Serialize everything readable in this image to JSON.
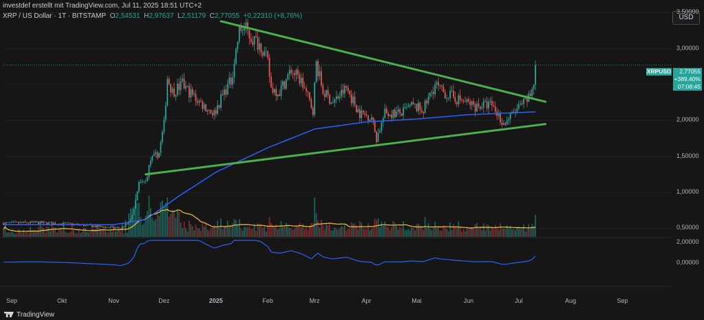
{
  "header": {
    "attribution": "investdef erstellt mit TradingView.com, Jul 11, 2025 18:51 UTC+2",
    "symbol": "XRP / US Dollar · 1T · BITSTAMP",
    "open_label": "O",
    "open": "2,54531",
    "high_label": "H",
    "high": "2,97637",
    "low_label": "L",
    "low": "2,51179",
    "close_label": "C",
    "close": "2,77055",
    "change": "+0,22310 (+8,76%)"
  },
  "currency": "USD",
  "price_tag": {
    "symbol": "XRPUSD",
    "price": "2,77055",
    "change_pct": "+389,40%",
    "countdown": "07:08:45"
  },
  "footer": {
    "brand": "TradingView"
  },
  "colors": {
    "background": "#161616",
    "up": "#26a69a",
    "down": "#ef5350",
    "trendline": "#4caf50",
    "ma": "#2962ff",
    "volume_ma": "#f9c23c",
    "oscillator": "#2962ff"
  },
  "chart_data": {
    "type": "candlestick",
    "title": "",
    "price_axis": {
      "ticks": [
        "3,50000",
        "3,00000",
        "2,50000",
        "2,00000",
        "1,50000",
        "1,00000",
        "0,50000"
      ],
      "tick_values": [
        3.5,
        3.0,
        2.5,
        2.0,
        1.5,
        1.0,
        0.5
      ],
      "range": [
        0.38,
        3.58
      ]
    },
    "oscillator_axis": {
      "ticks": [
        "2,00000",
        "0,00000"
      ],
      "tick_values": [
        2.0,
        0.0
      ]
    },
    "x_axis": {
      "ticks": [
        "Sep",
        "Okt",
        "Nov",
        "Dez",
        "2025",
        "Feb",
        "Mrz",
        "Apr",
        "Mai",
        "Jun",
        "Jul",
        "Aug",
        "Sep"
      ],
      "range": [
        "2024-08-27",
        "2025-09-30"
      ]
    },
    "price_keypoints": [
      [
        "2024-08-27",
        0.57
      ],
      [
        "2024-09-15",
        0.58
      ],
      [
        "2024-10-05",
        0.56
      ],
      [
        "2024-10-25",
        0.52
      ],
      [
        "2024-11-05",
        0.5
      ],
      [
        "2024-11-10",
        0.58
      ],
      [
        "2024-11-13",
        0.75
      ],
      [
        "2024-11-16",
        1.12
      ],
      [
        "2024-11-20",
        1.15
      ],
      [
        "2024-11-23",
        1.45
      ],
      [
        "2024-11-28",
        1.55
      ],
      [
        "2024-12-01",
        1.95
      ],
      [
        "2024-12-03",
        2.6
      ],
      [
        "2024-12-06",
        2.4
      ],
      [
        "2024-12-12",
        2.5
      ],
      [
        "2024-12-18",
        2.35
      ],
      [
        "2024-12-25",
        2.2
      ],
      [
        "2024-12-31",
        2.1
      ],
      [
        "2025-01-06",
        2.4
      ],
      [
        "2025-01-10",
        2.55
      ],
      [
        "2025-01-15",
        3.25
      ],
      [
        "2025-01-18",
        3.3
      ],
      [
        "2025-01-22",
        3.15
      ],
      [
        "2025-01-28",
        3.05
      ],
      [
        "2025-02-01",
        2.8
      ],
      [
        "2025-02-03",
        2.45
      ],
      [
        "2025-02-08",
        2.4
      ],
      [
        "2025-02-15",
        2.7
      ],
      [
        "2025-02-21",
        2.55
      ],
      [
        "2025-02-28",
        2.15
      ],
      [
        "2025-03-02",
        2.8
      ],
      [
        "2025-03-06",
        2.4
      ],
      [
        "2025-03-12",
        2.25
      ],
      [
        "2025-03-20",
        2.45
      ],
      [
        "2025-03-28",
        2.1
      ],
      [
        "2025-04-04",
        2.05
      ],
      [
        "2025-04-07",
        1.75
      ],
      [
        "2025-04-12",
        2.1
      ],
      [
        "2025-04-22",
        2.1
      ],
      [
        "2025-04-28",
        2.2
      ],
      [
        "2025-05-05",
        2.15
      ],
      [
        "2025-05-12",
        2.5
      ],
      [
        "2025-05-16",
        2.4
      ],
      [
        "2025-05-25",
        2.3
      ],
      [
        "2025-06-05",
        2.2
      ],
      [
        "2025-06-15",
        2.22
      ],
      [
        "2025-06-22",
        1.95
      ],
      [
        "2025-06-30",
        2.15
      ],
      [
        "2025-07-05",
        2.25
      ],
      [
        "2025-07-08",
        2.35
      ],
      [
        "2025-07-10",
        2.55
      ],
      [
        "2025-07-11",
        2.77
      ]
    ],
    "moving_average_keypoints": [
      [
        "2024-08-27",
        0.55
      ],
      [
        "2024-10-01",
        0.55
      ],
      [
        "2024-11-01",
        0.55
      ],
      [
        "2024-11-20",
        0.62
      ],
      [
        "2024-12-10",
        0.95
      ],
      [
        "2025-01-01",
        1.28
      ],
      [
        "2025-02-01",
        1.62
      ],
      [
        "2025-03-01",
        1.88
      ],
      [
        "2025-04-01",
        1.98
      ],
      [
        "2025-05-01",
        2.02
      ],
      [
        "2025-06-01",
        2.08
      ],
      [
        "2025-07-11",
        2.12
      ]
    ],
    "upper_trendline": {
      "from": [
        "2025-01-04",
        3.38
      ],
      "to": [
        "2025-07-17",
        2.26
      ]
    },
    "lower_trendline": {
      "from": [
        "2024-11-20",
        1.25
      ],
      "to": [
        "2025-07-17",
        1.95
      ]
    }
  }
}
